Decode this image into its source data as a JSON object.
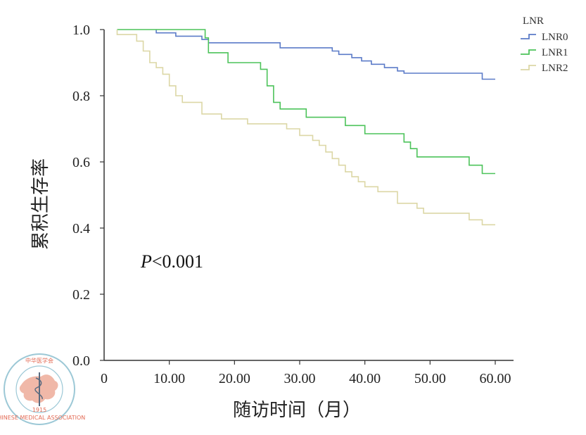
{
  "chart_data": {
    "type": "line",
    "step": true,
    "xlabel": "随访时间（月）",
    "ylabel": "累积生存率",
    "xlim": [
      0,
      63
    ],
    "ylim": [
      0,
      1.0
    ],
    "xticks": [
      0,
      10,
      20,
      30,
      40,
      50,
      60
    ],
    "xtick_labels": [
      "0",
      "10.00",
      "20.00",
      "30.00",
      "40.00",
      "50.00",
      "60.00"
    ],
    "yticks": [
      0,
      0.2,
      0.4,
      0.6,
      0.8,
      1.0
    ],
    "ytick_labels": [
      "0.0",
      "0.2",
      "0.4",
      "0.6",
      "0.8",
      "1.0"
    ],
    "legend_title": "LNR",
    "legend_position": "top-right",
    "annotation_prefix": "P",
    "annotation_suffix": "<0.001",
    "series": [
      {
        "name": "LNR0",
        "color": "#5b7bc8",
        "points": [
          [
            8,
            1.0
          ],
          [
            8,
            0.99
          ],
          [
            11,
            0.99
          ],
          [
            11,
            0.98
          ],
          [
            15,
            0.98
          ],
          [
            15,
            0.97
          ],
          [
            16,
            0.97
          ],
          [
            16,
            0.96
          ],
          [
            27,
            0.96
          ],
          [
            27,
            0.945
          ],
          [
            35,
            0.945
          ],
          [
            35,
            0.935
          ],
          [
            36,
            0.935
          ],
          [
            36,
            0.925
          ],
          [
            38,
            0.925
          ],
          [
            38,
            0.915
          ],
          [
            39.5,
            0.915
          ],
          [
            39.5,
            0.905
          ],
          [
            41,
            0.905
          ],
          [
            41,
            0.895
          ],
          [
            43,
            0.895
          ],
          [
            43,
            0.885
          ],
          [
            45,
            0.885
          ],
          [
            45,
            0.875
          ],
          [
            46,
            0.875
          ],
          [
            46,
            0.868
          ],
          [
            58,
            0.868
          ],
          [
            58,
            0.85
          ],
          [
            60,
            0.85
          ]
        ]
      },
      {
        "name": "LNR1",
        "color": "#4cc35a",
        "points": [
          [
            2,
            1.0
          ],
          [
            15.5,
            1.0
          ],
          [
            15.5,
            0.975
          ],
          [
            16,
            0.975
          ],
          [
            16,
            0.93
          ],
          [
            19,
            0.93
          ],
          [
            19,
            0.9
          ],
          [
            24,
            0.9
          ],
          [
            24,
            0.88
          ],
          [
            25,
            0.88
          ],
          [
            25,
            0.83
          ],
          [
            26,
            0.83
          ],
          [
            26,
            0.78
          ],
          [
            27,
            0.78
          ],
          [
            27,
            0.76
          ],
          [
            31,
            0.76
          ],
          [
            31,
            0.735
          ],
          [
            37,
            0.735
          ],
          [
            37,
            0.71
          ],
          [
            40,
            0.71
          ],
          [
            40,
            0.685
          ],
          [
            46,
            0.685
          ],
          [
            46,
            0.66
          ],
          [
            47,
            0.66
          ],
          [
            47,
            0.64
          ],
          [
            48,
            0.64
          ],
          [
            48,
            0.615
          ],
          [
            56,
            0.615
          ],
          [
            56,
            0.59
          ],
          [
            58,
            0.59
          ],
          [
            58,
            0.565
          ],
          [
            60,
            0.565
          ]
        ]
      },
      {
        "name": "LNR2",
        "color": "#dcd7a6",
        "points": [
          [
            2,
            1.0
          ],
          [
            2,
            0.985
          ],
          [
            5,
            0.985
          ],
          [
            5,
            0.965
          ],
          [
            6,
            0.965
          ],
          [
            6,
            0.935
          ],
          [
            7,
            0.935
          ],
          [
            7,
            0.9
          ],
          [
            8,
            0.9
          ],
          [
            8,
            0.885
          ],
          [
            9,
            0.885
          ],
          [
            9,
            0.865
          ],
          [
            10,
            0.865
          ],
          [
            10,
            0.83
          ],
          [
            11,
            0.83
          ],
          [
            11,
            0.8
          ],
          [
            12,
            0.8
          ],
          [
            12,
            0.78
          ],
          [
            15,
            0.78
          ],
          [
            15,
            0.745
          ],
          [
            18,
            0.745
          ],
          [
            18,
            0.73
          ],
          [
            22,
            0.73
          ],
          [
            22,
            0.715
          ],
          [
            28,
            0.715
          ],
          [
            28,
            0.7
          ],
          [
            30,
            0.7
          ],
          [
            30,
            0.68
          ],
          [
            32,
            0.68
          ],
          [
            32,
            0.665
          ],
          [
            33,
            0.665
          ],
          [
            33,
            0.65
          ],
          [
            34,
            0.65
          ],
          [
            34,
            0.63
          ],
          [
            35,
            0.63
          ],
          [
            35,
            0.61
          ],
          [
            36,
            0.61
          ],
          [
            36,
            0.59
          ],
          [
            37,
            0.59
          ],
          [
            37,
            0.57
          ],
          [
            38,
            0.57
          ],
          [
            38,
            0.555
          ],
          [
            39,
            0.555
          ],
          [
            39,
            0.54
          ],
          [
            40,
            0.54
          ],
          [
            40,
            0.525
          ],
          [
            42,
            0.525
          ],
          [
            42,
            0.51
          ],
          [
            45,
            0.51
          ],
          [
            45,
            0.475
          ],
          [
            48,
            0.475
          ],
          [
            48,
            0.46
          ],
          [
            49,
            0.46
          ],
          [
            49,
            0.445
          ],
          [
            56,
            0.445
          ],
          [
            56,
            0.425
          ],
          [
            58,
            0.425
          ],
          [
            58,
            0.41
          ],
          [
            60,
            0.41
          ]
        ]
      }
    ]
  },
  "logo": {
    "top_text": "中华医学会",
    "bottom_text": "CHINESE MEDICAL ASSOCIATION",
    "year": "1915",
    "color": "#e36b55"
  }
}
